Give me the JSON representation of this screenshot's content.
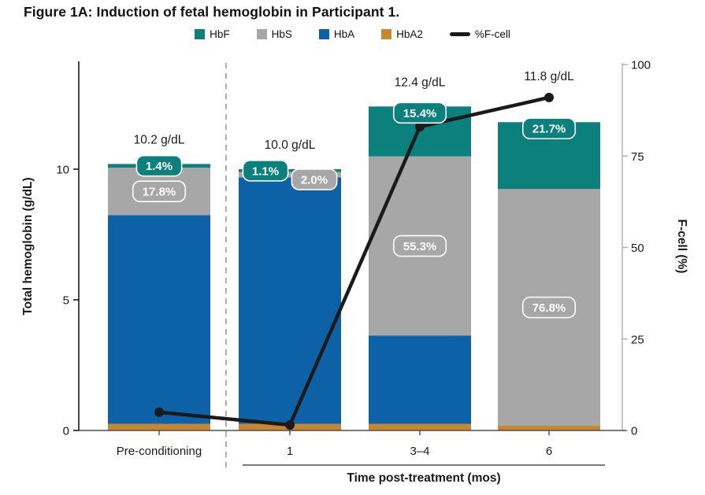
{
  "title": "Figure 1A: Induction of fetal hemoglobin in Participant 1.",
  "legend": {
    "items": [
      {
        "label": "HbF",
        "color": "#0b807c",
        "kind": "square"
      },
      {
        "label": "HbS",
        "color": "#a7a7a7",
        "kind": "square"
      },
      {
        "label": "HbA",
        "color": "#0c61a7",
        "kind": "square"
      },
      {
        "label": "HbA2",
        "color": "#c8872e",
        "kind": "square"
      },
      {
        "label": "%F-cell",
        "color": "#1a1a1a",
        "kind": "line"
      }
    ]
  },
  "chart_data": {
    "type": "bar",
    "subtype": "stacked-bars-with-line-overlay",
    "categories": [
      "Pre-conditioning",
      "1",
      "3–4",
      "6"
    ],
    "x_group_label": "Time post-treatment (mos)",
    "left_axis": {
      "label": "Total hemoglobin (g/dL)",
      "ticks": [
        0,
        5,
        10
      ],
      "range": [
        0,
        14
      ]
    },
    "right_axis": {
      "label": "F-cell (%)",
      "ticks": [
        0,
        25,
        50,
        75,
        100
      ],
      "range": [
        0,
        100
      ]
    },
    "series_colors": {
      "HbF": "#0b807c",
      "HbS": "#a7a7a7",
      "HbA": "#0c61a7",
      "HbA2": "#c8872e"
    },
    "bars": [
      {
        "category": "Pre-conditioning",
        "total_gdl": 10.2,
        "total_label": "10.2 g/dL",
        "segments": [
          {
            "series": "HbA2",
            "gdl": 0.25
          },
          {
            "series": "HbA",
            "gdl": 7.99
          },
          {
            "series": "HbS",
            "gdl": 1.82
          },
          {
            "series": "HbF",
            "gdl": 0.14
          }
        ],
        "badges": [
          {
            "series": "HbS",
            "label": "17.8%"
          },
          {
            "series": "HbF",
            "label": "1.4%"
          }
        ]
      },
      {
        "category": "1",
        "total_gdl": 10.0,
        "total_label": "10.0 g/dL",
        "segments": [
          {
            "series": "HbA2",
            "gdl": 0.25
          },
          {
            "series": "HbA",
            "gdl": 9.44
          },
          {
            "series": "HbS",
            "gdl": 0.2
          },
          {
            "series": "HbF",
            "gdl": 0.11
          }
        ],
        "badges": [
          {
            "series": "HbS",
            "label": "2.0%"
          },
          {
            "series": "HbF",
            "label": "1.1%"
          }
        ]
      },
      {
        "category": "3–4",
        "total_gdl": 12.4,
        "total_label": "12.4 g/dL",
        "segments": [
          {
            "series": "HbA2",
            "gdl": 0.25
          },
          {
            "series": "HbA",
            "gdl": 3.38
          },
          {
            "series": "HbS",
            "gdl": 6.86
          },
          {
            "series": "HbF",
            "gdl": 1.91
          }
        ],
        "badges": [
          {
            "series": "HbS",
            "label": "55.3%"
          },
          {
            "series": "HbF",
            "label": "15.4%"
          }
        ]
      },
      {
        "category": "6",
        "total_gdl": 11.8,
        "total_label": "11.8 g/dL",
        "segments": [
          {
            "series": "HbA2",
            "gdl": 0.18
          },
          {
            "series": "HbS",
            "gdl": 9.06
          },
          {
            "series": "HbF",
            "gdl": 2.56
          }
        ],
        "badges": [
          {
            "series": "HbS",
            "label": "76.8%"
          },
          {
            "series": "HbF",
            "label": "21.7%"
          }
        ]
      }
    ],
    "line": {
      "name": "%F-cell",
      "values_pct": [
        5,
        1.5,
        83,
        91
      ],
      "color": "#1a1a1a"
    }
  }
}
